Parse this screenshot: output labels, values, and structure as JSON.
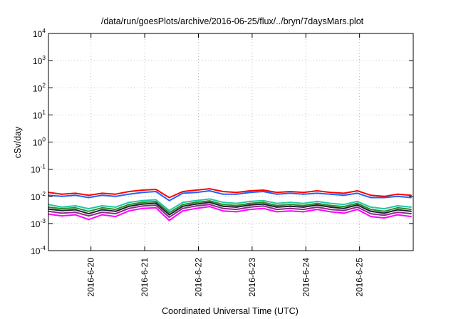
{
  "chart_data": {
    "type": "line",
    "title": "/data/run/goesPlots/archive/2016-06-25/flux/../bryn/7daysMars.plot",
    "xlabel": "Coordinated Universal Time (UTC)",
    "ylabel": "cSv/day",
    "y_scale": "log",
    "ylim": [
      0.0001,
      10000
    ],
    "y_ticks": [
      {
        "base": "10",
        "exp": "-4"
      },
      {
        "base": "10",
        "exp": "-3"
      },
      {
        "base": "10",
        "exp": "-2"
      },
      {
        "base": "10",
        "exp": "-1"
      },
      {
        "base": "10",
        "exp": "0"
      },
      {
        "base": "10",
        "exp": "1"
      },
      {
        "base": "10",
        "exp": "2"
      },
      {
        "base": "10",
        "exp": "3"
      },
      {
        "base": "10",
        "exp": "4"
      }
    ],
    "xlim": [
      "2016-06-19T05:00",
      "2016-06-25T23:59"
    ],
    "x_ticks": [
      "2016-6-20",
      "2016-6-21",
      "2016-6-22",
      "2016-6-23",
      "2016-6-24",
      "2016-6-25"
    ],
    "grid": true,
    "legend": "none",
    "x": [
      "2016-06-19T05:00",
      "2016-06-19T11:00",
      "2016-06-19T17:00",
      "2016-06-19T23:00",
      "2016-06-20T05:00",
      "2016-06-20T11:00",
      "2016-06-20T17:00",
      "2016-06-20T23:00",
      "2016-06-21T05:00",
      "2016-06-21T11:00",
      "2016-06-21T17:00",
      "2016-06-21T23:00",
      "2016-06-22T05:00",
      "2016-06-22T11:00",
      "2016-06-22T17:00",
      "2016-06-22T23:00",
      "2016-06-23T05:00",
      "2016-06-23T11:00",
      "2016-06-23T17:00",
      "2016-06-23T23:00",
      "2016-06-24T05:00",
      "2016-06-24T11:00",
      "2016-06-24T17:00",
      "2016-06-24T23:00",
      "2016-06-25T05:00",
      "2016-06-25T11:00",
      "2016-06-25T17:00",
      "2016-06-25T23:00"
    ],
    "series": [
      {
        "color": "#ff0000",
        "values": [
          0.014,
          0.012,
          0.013,
          0.011,
          0.013,
          0.012,
          0.015,
          0.017,
          0.018,
          0.009,
          0.015,
          0.017,
          0.019,
          0.015,
          0.014,
          0.016,
          0.017,
          0.014,
          0.015,
          0.014,
          0.016,
          0.014,
          0.013,
          0.016,
          0.011,
          0.01,
          0.012,
          0.011
        ]
      },
      {
        "color": "#1e64ff",
        "values": [
          0.011,
          0.01,
          0.011,
          0.009,
          0.011,
          0.01,
          0.012,
          0.014,
          0.015,
          0.007,
          0.013,
          0.014,
          0.016,
          0.012,
          0.012,
          0.014,
          0.015,
          0.012,
          0.013,
          0.012,
          0.013,
          0.012,
          0.011,
          0.013,
          0.009,
          0.009,
          0.01,
          0.009
        ]
      },
      {
        "color": "#20c8a0",
        "values": [
          0.005,
          0.004,
          0.0045,
          0.0035,
          0.0045,
          0.004,
          0.006,
          0.007,
          0.0075,
          0.003,
          0.006,
          0.007,
          0.008,
          0.006,
          0.0055,
          0.0065,
          0.007,
          0.0055,
          0.006,
          0.0055,
          0.0065,
          0.0055,
          0.005,
          0.0065,
          0.004,
          0.0035,
          0.0045,
          0.004
        ]
      },
      {
        "color": "#2a8c2a",
        "values": [
          0.004,
          0.0035,
          0.0038,
          0.0028,
          0.0038,
          0.0033,
          0.005,
          0.006,
          0.0064,
          0.0025,
          0.005,
          0.006,
          0.0068,
          0.005,
          0.0046,
          0.0055,
          0.006,
          0.0046,
          0.005,
          0.0046,
          0.0055,
          0.0046,
          0.0042,
          0.0055,
          0.0033,
          0.0028,
          0.0038,
          0.0033
        ]
      },
      {
        "color": "#202030",
        "values": [
          0.0034,
          0.003,
          0.0032,
          0.0023,
          0.0032,
          0.0028,
          0.0043,
          0.0052,
          0.0056,
          0.0021,
          0.0043,
          0.0052,
          0.006,
          0.0043,
          0.004,
          0.0048,
          0.0052,
          0.004,
          0.0043,
          0.004,
          0.0048,
          0.004,
          0.0036,
          0.0048,
          0.0028,
          0.0024,
          0.0032,
          0.0028
        ]
      },
      {
        "color": "#8a2a8a",
        "values": [
          0.0028,
          0.0024,
          0.0026,
          0.0019,
          0.0026,
          0.0023,
          0.0036,
          0.0044,
          0.0047,
          0.0017,
          0.0036,
          0.0044,
          0.005,
          0.0036,
          0.0033,
          0.004,
          0.0044,
          0.0033,
          0.0036,
          0.0033,
          0.004,
          0.0033,
          0.003,
          0.004,
          0.0023,
          0.002,
          0.0026,
          0.0023
        ]
      },
      {
        "color": "#ff00ff",
        "values": [
          0.0022,
          0.0019,
          0.0021,
          0.0014,
          0.0021,
          0.0018,
          0.0029,
          0.0036,
          0.0038,
          0.0013,
          0.0029,
          0.0036,
          0.0042,
          0.0029,
          0.0027,
          0.0033,
          0.0036,
          0.0027,
          0.0029,
          0.0027,
          0.0033,
          0.0027,
          0.0024,
          0.0033,
          0.0018,
          0.0016,
          0.0021,
          0.0018
        ]
      }
    ]
  }
}
